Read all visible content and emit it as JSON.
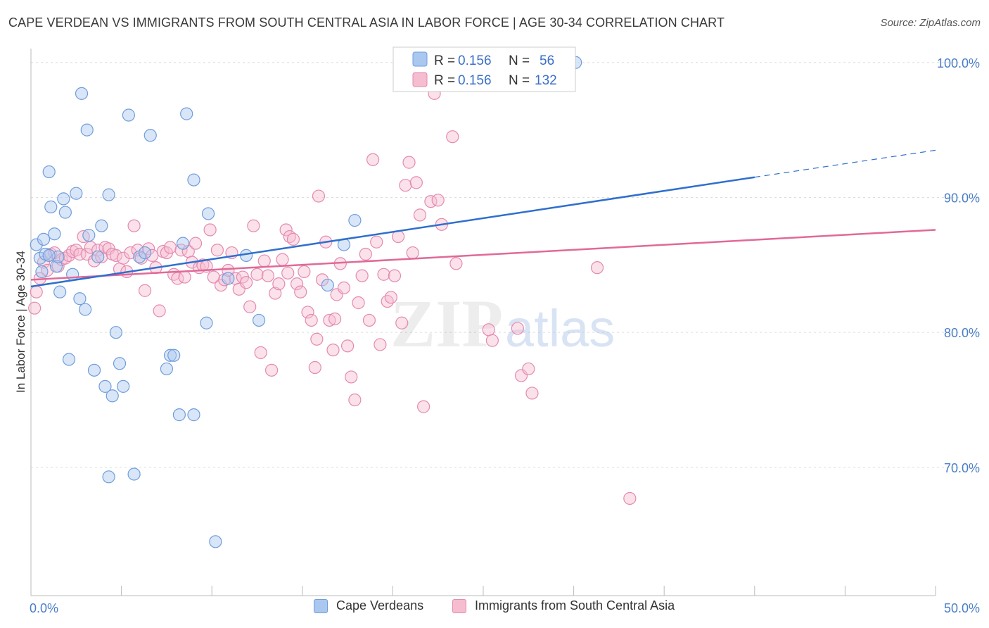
{
  "title": "CAPE VERDEAN VS IMMIGRANTS FROM SOUTH CENTRAL ASIA IN LABOR FORCE | AGE 30-34 CORRELATION CHART",
  "source": "Source: ZipAtlas.com",
  "watermark": {
    "zip": "ZIP",
    "atlas": "atlas"
  },
  "colors": {
    "blue_fill": "#aac8ef",
    "blue_stroke": "#6f9ddc",
    "blue_line": "#2f6fce",
    "pink_fill": "#f6bcd0",
    "pink_stroke": "#e48ab0",
    "pink_line": "#e06a97",
    "grid": "#dddddd",
    "tick_text": "#4a7ec9"
  },
  "legend": {
    "rows": [
      {
        "r_label": "R =",
        "r_value": "0.156",
        "n_label": "N =",
        "n_value": "56"
      },
      {
        "r_label": "R =",
        "r_value": "0.156",
        "n_label": "N =",
        "n_value": "132"
      }
    ]
  },
  "bottom_legend": [
    "Cape Verdeans",
    "Immigrants from South Central Asia"
  ],
  "chart_data": {
    "type": "scatter",
    "xlabel": "",
    "ylabel": "In Labor Force | Age 30-34",
    "xlim": [
      0,
      50
    ],
    "ylim": [
      60.5,
      101.5
    ],
    "x_tick_labels": [
      "0.0%",
      "50.0%"
    ],
    "y_ticks": [
      70,
      80,
      90,
      100
    ],
    "y_tick_labels": [
      "70.0%",
      "80.0%",
      "90.0%",
      "100.0%"
    ],
    "grid": true,
    "legend_position": "top-center",
    "series": [
      {
        "name": "Cape Verdeans",
        "r": 0.156,
        "n": 56,
        "trend": {
          "x0": 0,
          "y0": 83.4,
          "x1": 40,
          "y1": 91.5,
          "dash_to_x": 50,
          "dash_to_y": 93.5
        },
        "points": [
          [
            0.3,
            86.5
          ],
          [
            0.5,
            85.5
          ],
          [
            0.7,
            86.9
          ],
          [
            0.8,
            85.8
          ],
          [
            1.0,
            91.9
          ],
          [
            1.1,
            89.3
          ],
          [
            1.3,
            87.3
          ],
          [
            1.4,
            84.9
          ],
          [
            1.5,
            85.6
          ],
          [
            1.6,
            83.0
          ],
          [
            1.8,
            89.9
          ],
          [
            1.9,
            88.9
          ],
          [
            2.1,
            78.0
          ],
          [
            2.3,
            84.3
          ],
          [
            2.5,
            90.3
          ],
          [
            2.7,
            82.5
          ],
          [
            2.8,
            97.7
          ],
          [
            3.0,
            81.7
          ],
          [
            3.1,
            95.0
          ],
          [
            3.2,
            87.2
          ],
          [
            3.5,
            77.2
          ],
          [
            3.7,
            85.6
          ],
          [
            3.9,
            87.9
          ],
          [
            4.1,
            76.0
          ],
          [
            4.3,
            90.2
          ],
          [
            4.5,
            75.3
          ],
          [
            4.7,
            80.0
          ],
          [
            4.9,
            77.7
          ],
          [
            5.1,
            76.0
          ],
          [
            5.4,
            96.1
          ],
          [
            5.7,
            69.5
          ],
          [
            6.0,
            85.6
          ],
          [
            6.3,
            85.9
          ],
          [
            6.6,
            94.6
          ],
          [
            7.5,
            77.3
          ],
          [
            7.7,
            78.3
          ],
          [
            7.9,
            78.3
          ],
          [
            8.2,
            73.9
          ],
          [
            8.4,
            86.6
          ],
          [
            8.6,
            96.2
          ],
          [
            9.0,
            73.9
          ],
          [
            9.0,
            91.3
          ],
          [
            9.7,
            80.7
          ],
          [
            9.8,
            88.8
          ],
          [
            10.9,
            84.0
          ],
          [
            11.9,
            85.7
          ],
          [
            12.6,
            80.9
          ],
          [
            16.4,
            83.5
          ],
          [
            17.3,
            86.5
          ],
          [
            17.9,
            88.3
          ],
          [
            21.9,
            100.0
          ],
          [
            30.1,
            100.0
          ],
          [
            4.3,
            69.3
          ],
          [
            10.2,
            64.5
          ],
          [
            1.0,
            85.7
          ],
          [
            0.6,
            84.5
          ]
        ]
      },
      {
        "name": "Immigrants from South Central Asia",
        "r": 0.156,
        "n": 132,
        "trend": {
          "x0": 0,
          "y0": 83.9,
          "x1": 50,
          "y1": 87.6
        },
        "points": [
          [
            0.2,
            81.8
          ],
          [
            0.3,
            83.0
          ],
          [
            0.5,
            84.0
          ],
          [
            0.7,
            85.2
          ],
          [
            0.9,
            84.6
          ],
          [
            1.1,
            85.8
          ],
          [
            1.3,
            85.9
          ],
          [
            1.5,
            84.9
          ],
          [
            1.7,
            85.4
          ],
          [
            1.9,
            85.5
          ],
          [
            2.1,
            85.7
          ],
          [
            2.3,
            86.0
          ],
          [
            2.5,
            86.1
          ],
          [
            2.7,
            85.8
          ],
          [
            2.9,
            87.1
          ],
          [
            3.1,
            85.8
          ],
          [
            3.3,
            86.3
          ],
          [
            3.5,
            85.3
          ],
          [
            3.7,
            86.1
          ],
          [
            3.9,
            85.6
          ],
          [
            4.1,
            86.3
          ],
          [
            4.3,
            86.2
          ],
          [
            4.5,
            85.8
          ],
          [
            4.7,
            85.7
          ],
          [
            4.9,
            84.7
          ],
          [
            5.1,
            85.5
          ],
          [
            5.3,
            84.5
          ],
          [
            5.5,
            85.9
          ],
          [
            5.7,
            87.9
          ],
          [
            5.9,
            86.1
          ],
          [
            6.1,
            85.5
          ],
          [
            6.3,
            83.1
          ],
          [
            6.5,
            86.2
          ],
          [
            6.7,
            85.7
          ],
          [
            6.9,
            84.8
          ],
          [
            7.1,
            81.6
          ],
          [
            7.3,
            86.0
          ],
          [
            7.5,
            85.9
          ],
          [
            7.7,
            86.3
          ],
          [
            7.9,
            84.3
          ],
          [
            8.1,
            84.0
          ],
          [
            8.3,
            86.1
          ],
          [
            8.5,
            84.1
          ],
          [
            8.7,
            86.0
          ],
          [
            8.9,
            85.2
          ],
          [
            9.1,
            86.6
          ],
          [
            9.3,
            84.8
          ],
          [
            9.5,
            85.0
          ],
          [
            9.7,
            84.9
          ],
          [
            9.9,
            87.6
          ],
          [
            10.1,
            84.1
          ],
          [
            10.3,
            86.1
          ],
          [
            10.5,
            83.5
          ],
          [
            10.7,
            83.9
          ],
          [
            10.9,
            84.6
          ],
          [
            11.1,
            85.9
          ],
          [
            11.3,
            84.0
          ],
          [
            11.5,
            83.2
          ],
          [
            11.7,
            84.1
          ],
          [
            11.9,
            83.7
          ],
          [
            12.1,
            81.9
          ],
          [
            12.3,
            87.9
          ],
          [
            12.5,
            84.3
          ],
          [
            12.7,
            78.5
          ],
          [
            12.9,
            85.3
          ],
          [
            13.1,
            84.2
          ],
          [
            13.3,
            77.2
          ],
          [
            13.5,
            82.9
          ],
          [
            13.7,
            83.6
          ],
          [
            13.9,
            85.4
          ],
          [
            14.1,
            87.6
          ],
          [
            14.3,
            87.1
          ],
          [
            14.5,
            86.9
          ],
          [
            14.7,
            83.6
          ],
          [
            14.9,
            83.0
          ],
          [
            15.1,
            84.5
          ],
          [
            15.3,
            81.5
          ],
          [
            15.5,
            80.9
          ],
          [
            15.7,
            77.4
          ],
          [
            15.9,
            90.1
          ],
          [
            16.1,
            83.9
          ],
          [
            16.3,
            86.7
          ],
          [
            16.5,
            80.9
          ],
          [
            16.7,
            78.7
          ],
          [
            16.9,
            82.8
          ],
          [
            17.1,
            85.1
          ],
          [
            17.3,
            83.3
          ],
          [
            17.5,
            79.0
          ],
          [
            17.7,
            76.7
          ],
          [
            17.9,
            75.0
          ],
          [
            18.1,
            82.2
          ],
          [
            18.3,
            84.2
          ],
          [
            18.5,
            85.8
          ],
          [
            18.7,
            80.9
          ],
          [
            18.9,
            92.8
          ],
          [
            19.1,
            86.7
          ],
          [
            19.3,
            79.1
          ],
          [
            19.5,
            84.3
          ],
          [
            19.7,
            82.3
          ],
          [
            19.9,
            82.6
          ],
          [
            20.1,
            84.2
          ],
          [
            20.3,
            87.1
          ],
          [
            20.5,
            80.7
          ],
          [
            20.7,
            90.9
          ],
          [
            20.9,
            92.6
          ],
          [
            21.1,
            85.9
          ],
          [
            21.3,
            91.1
          ],
          [
            21.5,
            88.7
          ],
          [
            21.7,
            74.5
          ],
          [
            22.1,
            89.7
          ],
          [
            22.3,
            97.7
          ],
          [
            22.5,
            89.8
          ],
          [
            22.7,
            88.0
          ],
          [
            23.3,
            94.5
          ],
          [
            23.5,
            85.1
          ],
          [
            24.1,
            100.0
          ],
          [
            25.1,
            100.0
          ],
          [
            26.1,
            100.0
          ],
          [
            26.3,
            100.0
          ],
          [
            27.1,
            100.0
          ],
          [
            29.3,
            100.0
          ],
          [
            25.3,
            80.2
          ],
          [
            25.5,
            79.4
          ],
          [
            26.9,
            80.3
          ],
          [
            27.1,
            76.8
          ],
          [
            27.5,
            77.3
          ],
          [
            27.7,
            75.5
          ],
          [
            31.3,
            84.8
          ],
          [
            33.1,
            67.7
          ],
          [
            16.8,
            81.0
          ],
          [
            15.8,
            79.5
          ],
          [
            14.2,
            84.4
          ]
        ]
      }
    ]
  }
}
